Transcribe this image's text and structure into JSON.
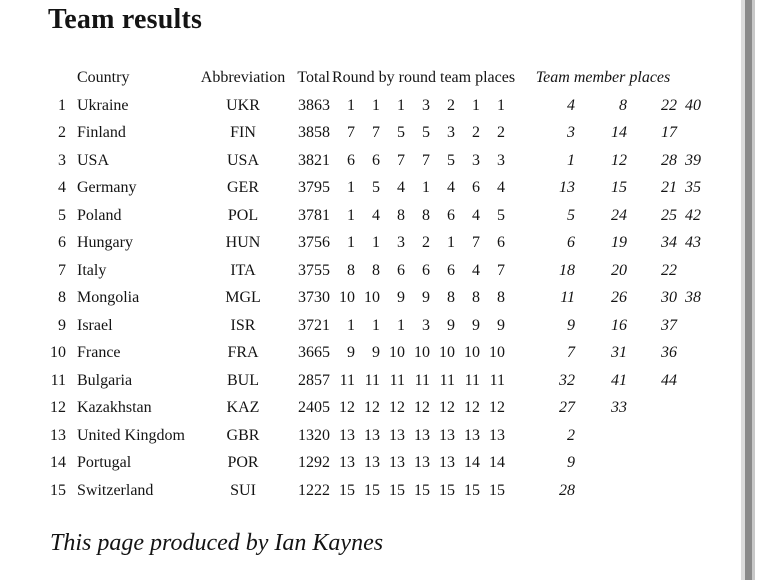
{
  "page": {
    "title": "Team results",
    "footer": "This page produced by Ian Kaynes"
  },
  "table": {
    "headers": {
      "country": "Country",
      "abbreviation": "Abbreviation",
      "total": "Total",
      "rounds": "Round by round team places",
      "member_places": "Team member places"
    },
    "rows": [
      {
        "rank": "1",
        "country": "Ukraine",
        "abbr": "UKR",
        "total": "3863",
        "rounds": [
          "1",
          "1",
          "1",
          "3",
          "2",
          "1",
          "1"
        ],
        "members": [
          "4",
          "8",
          "22",
          "40"
        ]
      },
      {
        "rank": "2",
        "country": "Finland",
        "abbr": "FIN",
        "total": "3858",
        "rounds": [
          "7",
          "7",
          "5",
          "5",
          "3",
          "2",
          "2"
        ],
        "members": [
          "3",
          "14",
          "17"
        ]
      },
      {
        "rank": "3",
        "country": "USA",
        "abbr": "USA",
        "total": "3821",
        "rounds": [
          "6",
          "6",
          "7",
          "7",
          "5",
          "3",
          "3"
        ],
        "members": [
          "1",
          "12",
          "28",
          "39"
        ]
      },
      {
        "rank": "4",
        "country": "Germany",
        "abbr": "GER",
        "total": "3795",
        "rounds": [
          "1",
          "5",
          "4",
          "1",
          "4",
          "6",
          "4"
        ],
        "members": [
          "13",
          "15",
          "21",
          "35"
        ]
      },
      {
        "rank": "5",
        "country": "Poland",
        "abbr": "POL",
        "total": "3781",
        "rounds": [
          "1",
          "4",
          "8",
          "8",
          "6",
          "4",
          "5"
        ],
        "members": [
          "5",
          "24",
          "25",
          "42"
        ]
      },
      {
        "rank": "6",
        "country": "Hungary",
        "abbr": "HUN",
        "total": "3756",
        "rounds": [
          "1",
          "1",
          "3",
          "2",
          "1",
          "7",
          "6"
        ],
        "members": [
          "6",
          "19",
          "34",
          "43"
        ]
      },
      {
        "rank": "7",
        "country": "Italy",
        "abbr": "ITA",
        "total": "3755",
        "rounds": [
          "8",
          "8",
          "6",
          "6",
          "6",
          "4",
          "7"
        ],
        "members": [
          "18",
          "20",
          "22"
        ]
      },
      {
        "rank": "8",
        "country": "Mongolia",
        "abbr": "MGL",
        "total": "3730",
        "rounds": [
          "10",
          "10",
          "9",
          "9",
          "8",
          "8",
          "8"
        ],
        "members": [
          "11",
          "26",
          "30",
          "38"
        ]
      },
      {
        "rank": "9",
        "country": "Israel",
        "abbr": "ISR",
        "total": "3721",
        "rounds": [
          "1",
          "1",
          "1",
          "3",
          "9",
          "9",
          "9"
        ],
        "members": [
          "9",
          "16",
          "37"
        ]
      },
      {
        "rank": "10",
        "country": "France",
        "abbr": "FRA",
        "total": "3665",
        "rounds": [
          "9",
          "9",
          "10",
          "10",
          "10",
          "10",
          "10"
        ],
        "members": [
          "7",
          "31",
          "36"
        ]
      },
      {
        "rank": "11",
        "country": "Bulgaria",
        "abbr": "BUL",
        "total": "2857",
        "rounds": [
          "11",
          "11",
          "11",
          "11",
          "11",
          "11",
          "11"
        ],
        "members": [
          "32",
          "41",
          "44"
        ]
      },
      {
        "rank": "12",
        "country": "Kazakhstan",
        "abbr": "KAZ",
        "total": "2405",
        "rounds": [
          "12",
          "12",
          "12",
          "12",
          "12",
          "12",
          "12"
        ],
        "members": [
          "27",
          "33"
        ]
      },
      {
        "rank": "13",
        "country": "United Kingdom",
        "abbr": "GBR",
        "total": "1320",
        "rounds": [
          "13",
          "13",
          "13",
          "13",
          "13",
          "13",
          "13"
        ],
        "members": [
          "2"
        ]
      },
      {
        "rank": "14",
        "country": "Portugal",
        "abbr": "POR",
        "total": "1292",
        "rounds": [
          "13",
          "13",
          "13",
          "13",
          "13",
          "14",
          "14"
        ],
        "members": [
          "9"
        ]
      },
      {
        "rank": "15",
        "country": "Switzerland",
        "abbr": "SUI",
        "total": "1222",
        "rounds": [
          "15",
          "15",
          "15",
          "15",
          "15",
          "15",
          "15"
        ],
        "members": [
          "28"
        ]
      }
    ]
  },
  "colors": {
    "background": "#ffffff",
    "text": "#141414",
    "edge_light": "#dcdcdc",
    "edge_dark": "#8a8a8a",
    "edge_mid": "#c8c8c8"
  }
}
